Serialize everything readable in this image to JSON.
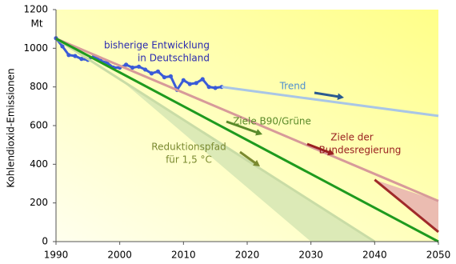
{
  "chart_data": {
    "type": "line",
    "y_label": "Kohlendioxid-Emissionen",
    "y_unit": "Mt",
    "xlim": [
      1990,
      2050
    ],
    "xticks": [
      1990,
      2000,
      2010,
      2020,
      2030,
      2040,
      2050
    ],
    "ylim": [
      0,
      1200
    ],
    "yticks": [
      0,
      200,
      400,
      600,
      800,
      1000,
      1200
    ],
    "series": [
      {
        "color": "#3a5bd8",
        "markers": true,
        "x": [
          1990,
          1991,
          1992,
          1993,
          1994,
          1995,
          1996,
          1997,
          1998,
          1999,
          2000,
          2001,
          2002,
          2003,
          2004,
          2005,
          2006,
          2007,
          2008,
          2009,
          2010,
          2011,
          2012,
          2013,
          2014,
          2015,
          2016
        ],
        "values": [
          1052,
          1010,
          965,
          960,
          945,
          940,
          960,
          935,
          925,
          900,
          900,
          915,
          900,
          905,
          890,
          870,
          880,
          850,
          855,
          785,
          835,
          815,
          820,
          840,
          800,
          795,
          800
        ]
      },
      {
        "color": "#a9c6e6",
        "x": [
          2016,
          2050
        ],
        "values": [
          800,
          650
        ]
      },
      {
        "color": "#d79a9a",
        "x": [
          1990,
          2050
        ],
        "values": [
          1050,
          210
        ]
      },
      {
        "color": "#c9dca6",
        "x": [
          1990,
          2040
        ],
        "values": [
          1050,
          0
        ]
      },
      {
        "color": "#1e9a1e",
        "x": [
          1990,
          2050
        ],
        "values": [
          1050,
          0
        ]
      },
      {
        "color": "#a02a2a",
        "x": [
          2040,
          2050
        ],
        "values": [
          320,
          50
        ]
      }
    ],
    "areas": [
      {
        "color": "#d6e6b4",
        "x": [
          2000,
          2030,
          2040
        ],
        "values": [
          840,
          0,
          0
        ]
      },
      {
        "color": "#e8b0b0",
        "x": [
          2040,
          2050,
          2050
        ],
        "values": [
          320,
          210,
          50
        ]
      }
    ],
    "annotations": [
      {
        "text": [
          "bisherige Entwicklung",
          "in Deutschland"
        ],
        "color": "#2a2ab0"
      },
      {
        "text": [
          "Trend"
        ],
        "color": "#4f8fd0"
      },
      {
        "text": [
          "Ziele B90/Grüne"
        ],
        "color": "#5a8a2a"
      },
      {
        "text": [
          "Ziele der",
          "Bundesregierung"
        ],
        "color": "#9a2020"
      },
      {
        "text": [
          "Reduktionspfad",
          "für 1,5 °C"
        ],
        "color": "#7a8a30"
      }
    ]
  }
}
